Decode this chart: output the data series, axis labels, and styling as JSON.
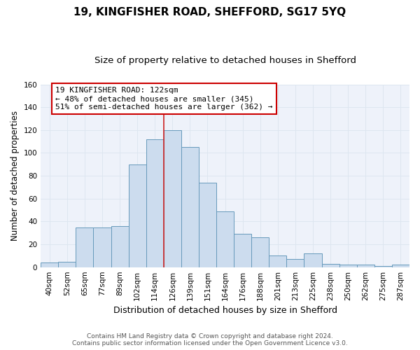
{
  "title": "19, KINGFISHER ROAD, SHEFFORD, SG17 5YQ",
  "subtitle": "Size of property relative to detached houses in Shefford",
  "xlabel": "Distribution of detached houses by size in Shefford",
  "ylabel": "Number of detached properties",
  "bin_labels": [
    "40sqm",
    "52sqm",
    "65sqm",
    "77sqm",
    "89sqm",
    "102sqm",
    "114sqm",
    "126sqm",
    "139sqm",
    "151sqm",
    "164sqm",
    "176sqm",
    "188sqm",
    "201sqm",
    "213sqm",
    "225sqm",
    "238sqm",
    "250sqm",
    "262sqm",
    "275sqm",
    "287sqm"
  ],
  "bar_heights": [
    4,
    5,
    35,
    35,
    36,
    90,
    112,
    120,
    105,
    74,
    49,
    29,
    26,
    10,
    7,
    12,
    3,
    2,
    2,
    1,
    2
  ],
  "bar_color": "#ccdcee",
  "bar_edge_color": "#6699bb",
  "grid_color": "#dde6f0",
  "bg_color": "#ffffff",
  "plot_bg_color": "#eef2fa",
  "red_line_bin_index": 7,
  "annotation_text": "19 KINGFISHER ROAD: 122sqm\n← 48% of detached houses are smaller (345)\n51% of semi-detached houses are larger (362) →",
  "annotation_box_color": "#ffffff",
  "annotation_box_edge": "#cc0000",
  "footer_line1": "Contains HM Land Registry data © Crown copyright and database right 2024.",
  "footer_line2": "Contains public sector information licensed under the Open Government Licence v3.0.",
  "ylim": [
    0,
    160
  ],
  "yticks": [
    0,
    20,
    40,
    60,
    80,
    100,
    120,
    140,
    160
  ],
  "title_fontsize": 11,
  "subtitle_fontsize": 9.5,
  "xlabel_fontsize": 9,
  "ylabel_fontsize": 8.5,
  "tick_fontsize": 7.5,
  "annotation_fontsize": 8,
  "footer_fontsize": 6.5
}
